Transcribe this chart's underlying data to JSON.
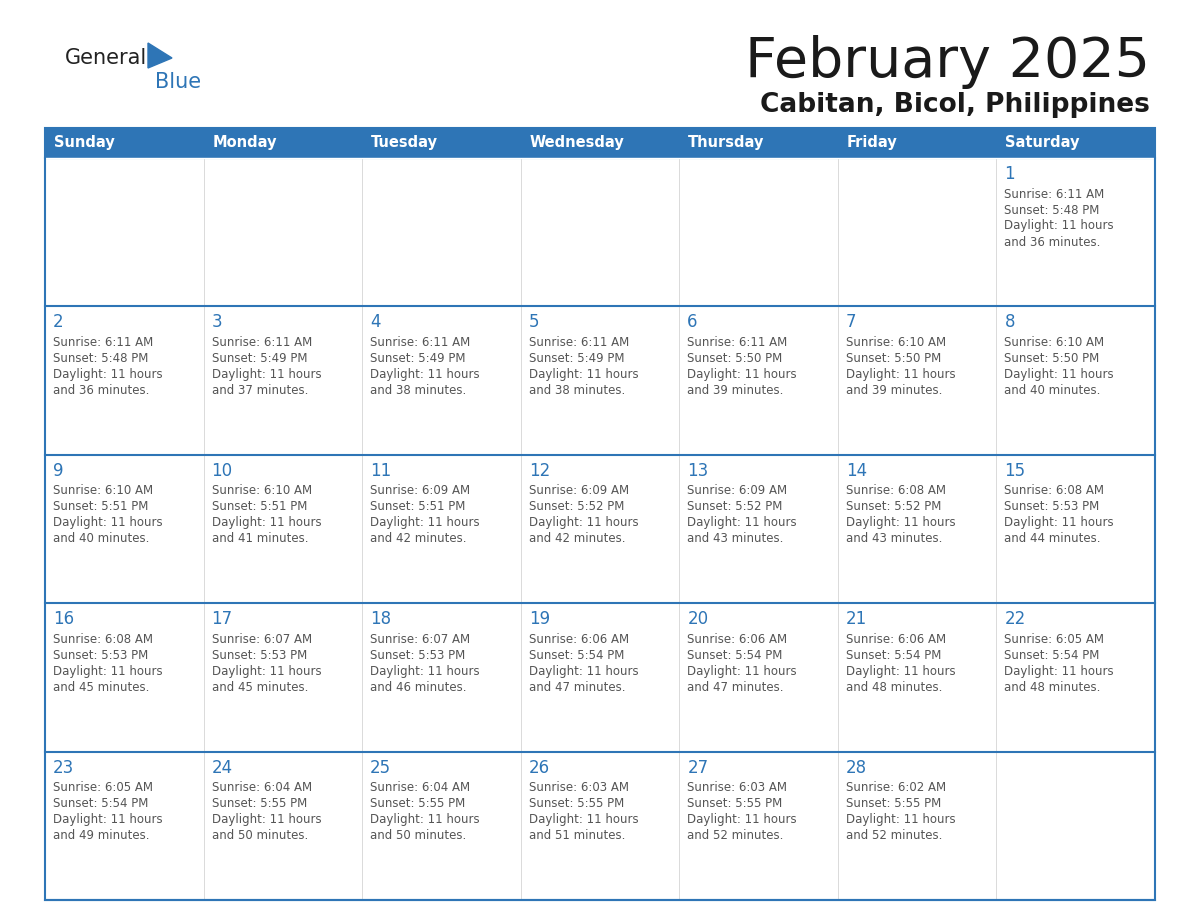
{
  "title": "February 2025",
  "subtitle": "Cabitan, Bicol, Philippines",
  "header_bg": "#2E75B6",
  "header_text_color": "#FFFFFF",
  "cell_bg": "#FFFFFF",
  "border_color": "#2E75B6",
  "text_color": "#555555",
  "day_num_color": "#2E75B6",
  "days_of_week": [
    "Sunday",
    "Monday",
    "Tuesday",
    "Wednesday",
    "Thursday",
    "Friday",
    "Saturday"
  ],
  "calendar_data": [
    [
      null,
      null,
      null,
      null,
      null,
      null,
      {
        "day": 1,
        "sunrise": "6:11 AM",
        "sunset": "5:48 PM",
        "daylight_line1": "11 hours",
        "daylight_line2": "and 36 minutes."
      }
    ],
    [
      {
        "day": 2,
        "sunrise": "6:11 AM",
        "sunset": "5:48 PM",
        "daylight_line1": "11 hours",
        "daylight_line2": "and 36 minutes."
      },
      {
        "day": 3,
        "sunrise": "6:11 AM",
        "sunset": "5:49 PM",
        "daylight_line1": "11 hours",
        "daylight_line2": "and 37 minutes."
      },
      {
        "day": 4,
        "sunrise": "6:11 AM",
        "sunset": "5:49 PM",
        "daylight_line1": "11 hours",
        "daylight_line2": "and 38 minutes."
      },
      {
        "day": 5,
        "sunrise": "6:11 AM",
        "sunset": "5:49 PM",
        "daylight_line1": "11 hours",
        "daylight_line2": "and 38 minutes."
      },
      {
        "day": 6,
        "sunrise": "6:11 AM",
        "sunset": "5:50 PM",
        "daylight_line1": "11 hours",
        "daylight_line2": "and 39 minutes."
      },
      {
        "day": 7,
        "sunrise": "6:10 AM",
        "sunset": "5:50 PM",
        "daylight_line1": "11 hours",
        "daylight_line2": "and 39 minutes."
      },
      {
        "day": 8,
        "sunrise": "6:10 AM",
        "sunset": "5:50 PM",
        "daylight_line1": "11 hours",
        "daylight_line2": "and 40 minutes."
      }
    ],
    [
      {
        "day": 9,
        "sunrise": "6:10 AM",
        "sunset": "5:51 PM",
        "daylight_line1": "11 hours",
        "daylight_line2": "and 40 minutes."
      },
      {
        "day": 10,
        "sunrise": "6:10 AM",
        "sunset": "5:51 PM",
        "daylight_line1": "11 hours",
        "daylight_line2": "and 41 minutes."
      },
      {
        "day": 11,
        "sunrise": "6:09 AM",
        "sunset": "5:51 PM",
        "daylight_line1": "11 hours",
        "daylight_line2": "and 42 minutes."
      },
      {
        "day": 12,
        "sunrise": "6:09 AM",
        "sunset": "5:52 PM",
        "daylight_line1": "11 hours",
        "daylight_line2": "and 42 minutes."
      },
      {
        "day": 13,
        "sunrise": "6:09 AM",
        "sunset": "5:52 PM",
        "daylight_line1": "11 hours",
        "daylight_line2": "and 43 minutes."
      },
      {
        "day": 14,
        "sunrise": "6:08 AM",
        "sunset": "5:52 PM",
        "daylight_line1": "11 hours",
        "daylight_line2": "and 43 minutes."
      },
      {
        "day": 15,
        "sunrise": "6:08 AM",
        "sunset": "5:53 PM",
        "daylight_line1": "11 hours",
        "daylight_line2": "and 44 minutes."
      }
    ],
    [
      {
        "day": 16,
        "sunrise": "6:08 AM",
        "sunset": "5:53 PM",
        "daylight_line1": "11 hours",
        "daylight_line2": "and 45 minutes."
      },
      {
        "day": 17,
        "sunrise": "6:07 AM",
        "sunset": "5:53 PM",
        "daylight_line1": "11 hours",
        "daylight_line2": "and 45 minutes."
      },
      {
        "day": 18,
        "sunrise": "6:07 AM",
        "sunset": "5:53 PM",
        "daylight_line1": "11 hours",
        "daylight_line2": "and 46 minutes."
      },
      {
        "day": 19,
        "sunrise": "6:06 AM",
        "sunset": "5:54 PM",
        "daylight_line1": "11 hours",
        "daylight_line2": "and 47 minutes."
      },
      {
        "day": 20,
        "sunrise": "6:06 AM",
        "sunset": "5:54 PM",
        "daylight_line1": "11 hours",
        "daylight_line2": "and 47 minutes."
      },
      {
        "day": 21,
        "sunrise": "6:06 AM",
        "sunset": "5:54 PM",
        "daylight_line1": "11 hours",
        "daylight_line2": "and 48 minutes."
      },
      {
        "day": 22,
        "sunrise": "6:05 AM",
        "sunset": "5:54 PM",
        "daylight_line1": "11 hours",
        "daylight_line2": "and 48 minutes."
      }
    ],
    [
      {
        "day": 23,
        "sunrise": "6:05 AM",
        "sunset": "5:54 PM",
        "daylight_line1": "11 hours",
        "daylight_line2": "and 49 minutes."
      },
      {
        "day": 24,
        "sunrise": "6:04 AM",
        "sunset": "5:55 PM",
        "daylight_line1": "11 hours",
        "daylight_line2": "and 50 minutes."
      },
      {
        "day": 25,
        "sunrise": "6:04 AM",
        "sunset": "5:55 PM",
        "daylight_line1": "11 hours",
        "daylight_line2": "and 50 minutes."
      },
      {
        "day": 26,
        "sunrise": "6:03 AM",
        "sunset": "5:55 PM",
        "daylight_line1": "11 hours",
        "daylight_line2": "and 51 minutes."
      },
      {
        "day": 27,
        "sunrise": "6:03 AM",
        "sunset": "5:55 PM",
        "daylight_line1": "11 hours",
        "daylight_line2": "and 52 minutes."
      },
      {
        "day": 28,
        "sunrise": "6:02 AM",
        "sunset": "5:55 PM",
        "daylight_line1": "11 hours",
        "daylight_line2": "and 52 minutes."
      },
      null
    ]
  ]
}
